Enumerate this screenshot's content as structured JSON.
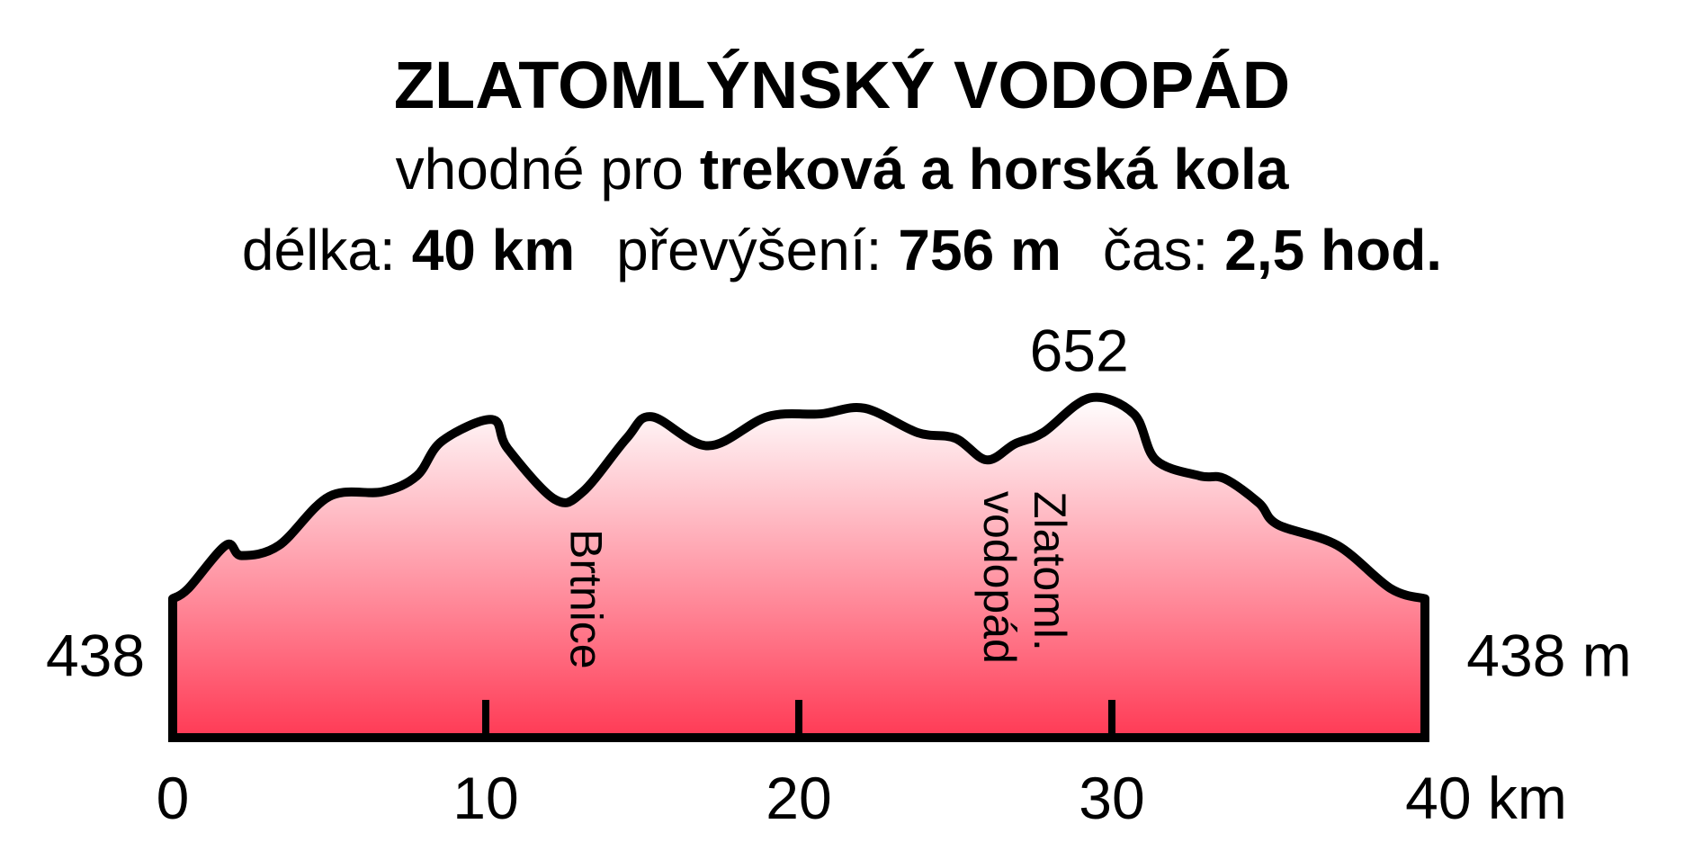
{
  "chart_data": {
    "type": "area",
    "title": "ZLATOMLÝNSKÝ VODOPÁD",
    "subtitle": {
      "text": "vhodné pro",
      "bold": "treková a horská kola"
    },
    "stats": [
      {
        "label": "délka:",
        "value": "40 km"
      },
      {
        "label": "převýšení:",
        "value": "756 m"
      },
      {
        "label": "čas:",
        "value": "2,5 hod."
      }
    ],
    "x": [
      0,
      0.5,
      1.7,
      2.2,
      3.4,
      5,
      6.7,
      7.8,
      8.6,
      10.2,
      10.7,
      12.2,
      13.1,
      14.5,
      15.3,
      17.1,
      19,
      20.7,
      22.1,
      23.8,
      25,
      26,
      26.9,
      27.8,
      29.3,
      30.7,
      31.4,
      32.8,
      33.6,
      34.7,
      35.3,
      37.2,
      38.9,
      40
    ],
    "values": [
      438,
      449,
      495,
      484,
      495,
      547,
      552,
      569,
      606,
      629,
      598,
      544,
      552,
      609,
      632,
      601,
      632,
      635,
      641,
      615,
      609,
      586,
      603,
      615,
      652,
      635,
      586,
      569,
      566,
      540,
      517,
      495,
      449,
      438
    ],
    "value_labels": [
      "438",
      null,
      null,
      null,
      null,
      null,
      null,
      null,
      null,
      null,
      null,
      null,
      null,
      null,
      null,
      null,
      null,
      null,
      null,
      null,
      null,
      null,
      null,
      null,
      "652",
      null,
      null,
      null,
      null,
      null,
      null,
      null,
      null,
      "438 m"
    ],
    "places": [
      {
        "lines": [
          "Brtnice"
        ],
        "x": 12.2
      },
      {
        "lines": [
          "Zlatoml.",
          "vodopád"
        ],
        "x": 26.2
      }
    ],
    "xlim": [
      0,
      40
    ],
    "xticks": [
      0,
      10,
      20,
      30,
      {
        "value": 40,
        "label": "40 km"
      }
    ],
    "ylim": [
      290,
      660
    ],
    "color": "#ff3a55",
    "line_color": "#000000",
    "grid": false
  }
}
